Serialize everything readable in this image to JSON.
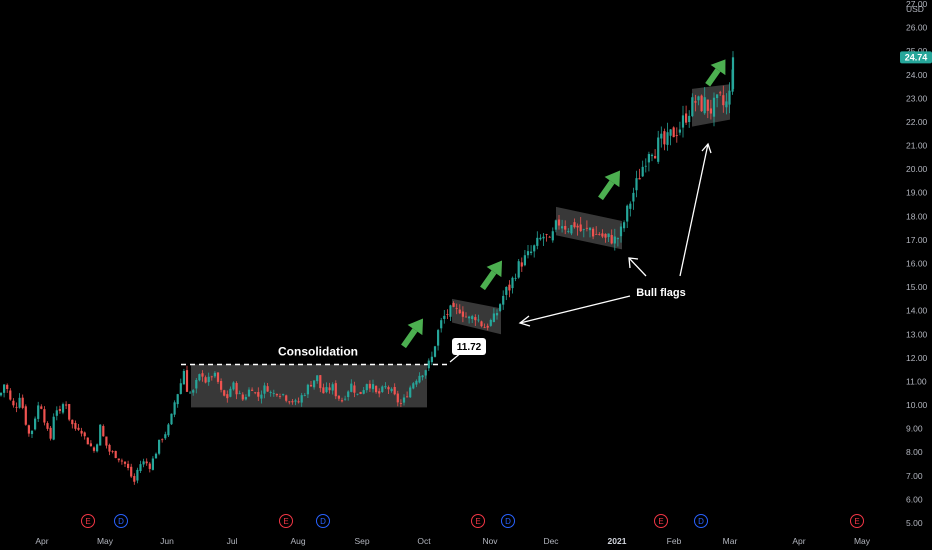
{
  "chart_data": {
    "type": "candlestick",
    "currency_label": "USD",
    "last_price": "24.74",
    "ylim": [
      5.0,
      27.0
    ],
    "y_ticks": [
      "27.00",
      "26.00",
      "25.00",
      "24.00",
      "23.00",
      "22.00",
      "21.00",
      "20.00",
      "19.00",
      "18.00",
      "17.00",
      "16.00",
      "15.00",
      "14.00",
      "13.00",
      "12.00",
      "11.00",
      "10.00",
      "9.00",
      "8.00",
      "7.00",
      "6.00",
      "5.00"
    ],
    "x_ticks": [
      "Apr",
      "May",
      "Jun",
      "Jul",
      "Aug",
      "Sep",
      "Oct",
      "Nov",
      "Dec",
      "2021",
      "Feb",
      "Mar",
      "Apr",
      "May"
    ],
    "event_markers": [
      {
        "label": "E",
        "color": "#f23645",
        "month": "May"
      },
      {
        "label": "D",
        "color": "#2962ff",
        "month": "May"
      },
      {
        "label": "E",
        "color": "#f23645",
        "month": "Aug"
      },
      {
        "label": "D",
        "color": "#2962ff",
        "month": "Aug"
      },
      {
        "label": "E",
        "color": "#f23645",
        "month": "Nov"
      },
      {
        "label": "D",
        "color": "#2962ff",
        "month": "Nov"
      },
      {
        "label": "E",
        "color": "#f23645",
        "month": "Feb"
      },
      {
        "label": "D",
        "color": "#2962ff",
        "month": "Feb"
      },
      {
        "label": "E",
        "color": "#f23645",
        "month": "May"
      }
    ],
    "colors": {
      "up": "#26a69a",
      "down": "#ef5350",
      "arrow": "#4caf50",
      "price_tag": "#26a69a"
    },
    "resistance_level": 11.72,
    "resistance_label": "11.72",
    "annotations": {
      "consolidation": "Consolidation",
      "bull_flags": "Bull flags"
    },
    "consolidation_zone": {
      "y_low": 9.9,
      "y_high": 11.72
    },
    "bull_flags": [
      {
        "y_top_start": 14.5,
        "y_top_end": 14.1,
        "y_bottom_start": 13.5,
        "y_bottom_end": 13.0
      },
      {
        "y_top_start": 18.4,
        "y_top_end": 17.8,
        "y_bottom_start": 17.2,
        "y_bottom_end": 16.6
      },
      {
        "y_top_start": 23.4,
        "y_top_end": 23.6,
        "y_bottom_start": 21.8,
        "y_bottom_end": 22.1
      }
    ],
    "price_path": [
      [
        0,
        10.4
      ],
      [
        5,
        11.0
      ],
      [
        10,
        10.2
      ],
      [
        15,
        9.8
      ],
      [
        20,
        10.5
      ],
      [
        25,
        9.4
      ],
      [
        30,
        8.6
      ],
      [
        35,
        9.5
      ],
      [
        40,
        10.2
      ],
      [
        45,
        9.3
      ],
      [
        50,
        8.4
      ],
      [
        55,
        10.0
      ],
      [
        60,
        9.6
      ],
      [
        65,
        10.3
      ],
      [
        70,
        9.3
      ],
      [
        75,
        9.0
      ],
      [
        80,
        9.1
      ],
      [
        85,
        8.6
      ],
      [
        90,
        8.3
      ],
      [
        95,
        8.0
      ],
      [
        100,
        9.1
      ],
      [
        105,
        8.4
      ],
      [
        110,
        8.0
      ],
      [
        115,
        7.9
      ],
      [
        120,
        7.7
      ],
      [
        125,
        7.5
      ],
      [
        128,
        7.3
      ],
      [
        131,
        7.0
      ],
      [
        134,
        6.7
      ],
      [
        137,
        7.2
      ],
      [
        140,
        7.5
      ],
      [
        145,
        7.6
      ],
      [
        150,
        7.4
      ],
      [
        155,
        7.9
      ],
      [
        160,
        8.5
      ],
      [
        165,
        8.8
      ],
      [
        170,
        9.2
      ],
      [
        175,
        10.2
      ],
      [
        180,
        10.8
      ],
      [
        184,
        11.5
      ],
      [
        187,
        10.7
      ],
      [
        192,
        10.4
      ],
      [
        197,
        11.0
      ],
      [
        202,
        11.4
      ],
      [
        207,
        10.9
      ],
      [
        212,
        11.3
      ],
      [
        217,
        11.1
      ],
      [
        222,
        10.4
      ],
      [
        227,
        10.3
      ],
      [
        232,
        10.9
      ],
      [
        237,
        10.6
      ],
      [
        242,
        10.2
      ],
      [
        247,
        10.5
      ],
      [
        252,
        10.8
      ],
      [
        257,
        10.3
      ],
      [
        262,
        10.6
      ],
      [
        267,
        10.8
      ],
      [
        272,
        10.4
      ],
      [
        277,
        10.6
      ],
      [
        282,
        10.5
      ],
      [
        287,
        10.3
      ],
      [
        292,
        10.2
      ],
      [
        297,
        10.0
      ],
      [
        302,
        10.4
      ],
      [
        307,
        10.7
      ],
      [
        312,
        11.0
      ],
      [
        317,
        11.2
      ],
      [
        322,
        10.5
      ],
      [
        327,
        10.6
      ],
      [
        332,
        10.8
      ],
      [
        337,
        10.4
      ],
      [
        342,
        10.2
      ],
      [
        347,
        10.6
      ],
      [
        352,
        10.9
      ],
      [
        357,
        10.4
      ],
      [
        362,
        10.6
      ],
      [
        367,
        11.0
      ],
      [
        372,
        10.8
      ],
      [
        377,
        10.4
      ],
      [
        382,
        10.6
      ],
      [
        387,
        10.8
      ],
      [
        392,
        10.5
      ],
      [
        397,
        10.2
      ],
      [
        402,
        10.0
      ],
      [
        407,
        10.5
      ],
      [
        412,
        10.9
      ],
      [
        417,
        11.2
      ],
      [
        422,
        11.4
      ],
      [
        427,
        11.6
      ],
      [
        432,
        12.0
      ],
      [
        436,
        12.8
      ],
      [
        440,
        13.4
      ],
      [
        445,
        13.8
      ],
      [
        450,
        14.0
      ],
      [
        455,
        13.9
      ],
      [
        460,
        14.1
      ],
      [
        465,
        13.8
      ],
      [
        470,
        13.6
      ],
      [
        475,
        13.8
      ],
      [
        480,
        13.5
      ],
      [
        485,
        13.3
      ],
      [
        490,
        13.5
      ],
      [
        495,
        13.7
      ],
      [
        500,
        14.3
      ],
      [
        505,
        14.8
      ],
      [
        510,
        15.0
      ],
      [
        515,
        15.6
      ],
      [
        520,
        16.0
      ],
      [
        525,
        16.2
      ],
      [
        530,
        16.4
      ],
      [
        535,
        16.7
      ],
      [
        540,
        17.0
      ],
      [
        545,
        17.2
      ],
      [
        550,
        16.8
      ],
      [
        555,
        17.5
      ],
      [
        560,
        17.8
      ],
      [
        565,
        17.6
      ],
      [
        570,
        17.5
      ],
      [
        575,
        17.7
      ],
      [
        580,
        17.4
      ],
      [
        585,
        17.3
      ],
      [
        590,
        17.5
      ],
      [
        595,
        17.2
      ],
      [
        600,
        17.3
      ],
      [
        605,
        17.0
      ],
      [
        610,
        17.1
      ],
      [
        615,
        17.0
      ],
      [
        620,
        17.2
      ],
      [
        625,
        17.9
      ],
      [
        630,
        18.6
      ],
      [
        635,
        19.2
      ],
      [
        640,
        19.8
      ],
      [
        645,
        20.4
      ],
      [
        650,
        21.0
      ],
      [
        655,
        20.8
      ],
      [
        660,
        21.2
      ],
      [
        665,
        21.0
      ],
      [
        670,
        21.4
      ],
      [
        675,
        21.6
      ],
      [
        680,
        21.8
      ],
      [
        685,
        22.2
      ],
      [
        690,
        22.6
      ],
      [
        695,
        22.9
      ],
      [
        700,
        22.7
      ],
      [
        705,
        22.8
      ],
      [
        710,
        22.5
      ],
      [
        715,
        22.7
      ],
      [
        720,
        22.9
      ],
      [
        725,
        22.6
      ],
      [
        730,
        23.2
      ],
      [
        733,
        24.74
      ]
    ]
  }
}
